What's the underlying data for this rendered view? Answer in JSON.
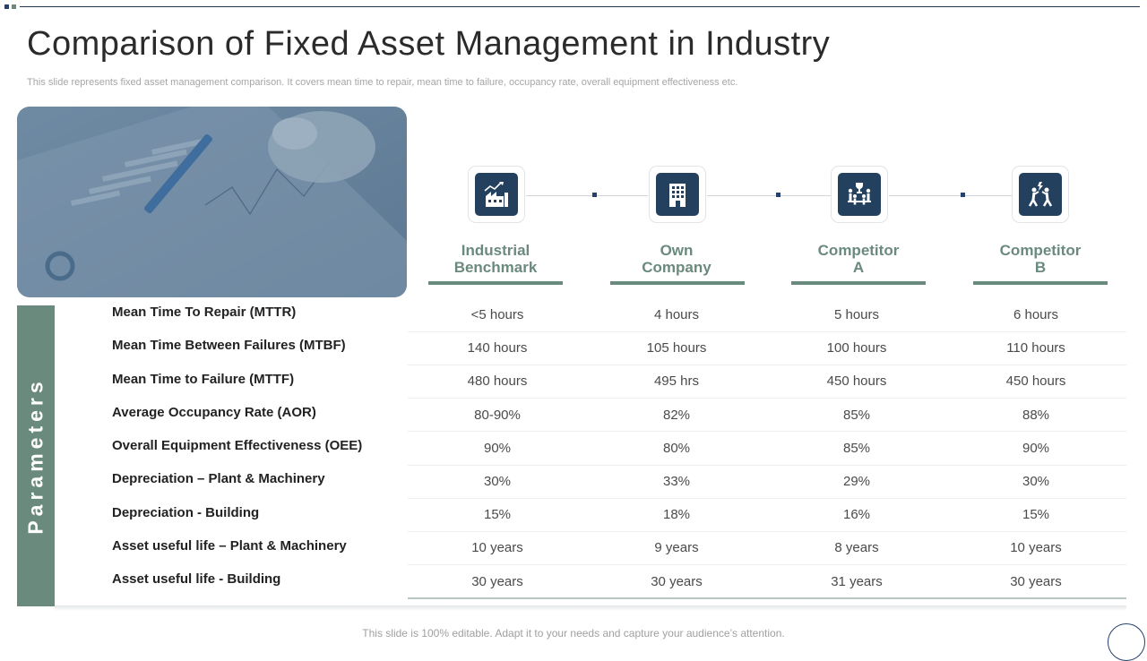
{
  "slide": {
    "title": "Comparison of Fixed Asset Management in Industry",
    "subtitle": "This slide represents fixed asset management comparison. It covers mean time to repair, mean time to failure, occupancy rate, overall equipment effectiveness etc.",
    "footer": "This slide is 100% editable. Adapt it to your needs and capture your audience’s attention."
  },
  "sidebar": {
    "label": "Parameters"
  },
  "columns": [
    {
      "line1": "Industrial",
      "line2": "Benchmark",
      "icon": "industry-chart-icon"
    },
    {
      "line1": "Own",
      "line2": "Company",
      "icon": "office-building-icon"
    },
    {
      "line1": "Competitor",
      "line2": "A",
      "icon": "team-trophy-icon"
    },
    {
      "line1": "Competitor",
      "line2": "B",
      "icon": "competition-figures-icon"
    }
  ],
  "rows": [
    {
      "label": "Mean Time To Repair (MTTR)",
      "values": [
        "<5 hours",
        "4 hours",
        "5 hours",
        "6 hours"
      ]
    },
    {
      "label": "Mean Time Between Failures (MTBF)",
      "values": [
        "140 hours",
        "105 hours",
        "100 hours",
        "110 hours"
      ]
    },
    {
      "label": "Mean Time to Failure (MTTF)",
      "values": [
        "480 hours",
        "495 hrs",
        "450 hours",
        "450 hours"
      ]
    },
    {
      "label": "Average Occupancy Rate (AOR)",
      "values": [
        "80-90%",
        "82%",
        "85%",
        "88%"
      ]
    },
    {
      "label": "Overall Equipment Effectiveness (OEE)",
      "values": [
        "90%",
        "80%",
        "85%",
        "90%"
      ]
    },
    {
      "label": "Depreciation – Plant & Machinery",
      "values": [
        "30%",
        "33%",
        "29%",
        "30%"
      ]
    },
    {
      "label": "Depreciation - Building",
      "values": [
        "15%",
        "18%",
        "16%",
        "15%"
      ]
    },
    {
      "label": "Asset useful life – Plant & Machinery",
      "values": [
        "10 years",
        "9 years",
        "8 years",
        "10 years"
      ]
    },
    {
      "label": "Asset useful life - Building",
      "values": [
        "30 years",
        "30 years",
        "31 years",
        "30 years"
      ]
    }
  ],
  "colors": {
    "accent": "#6b8a7e",
    "navy": "#24405f"
  }
}
